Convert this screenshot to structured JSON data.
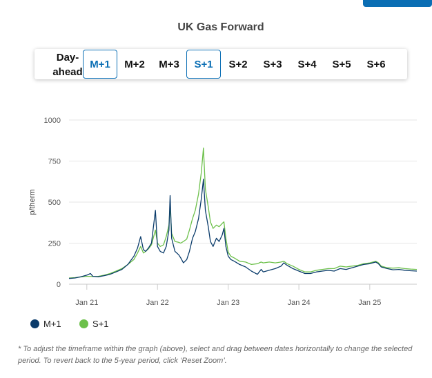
{
  "title": "UK Gas Forward",
  "tabs": [
    {
      "label": "Day-ahead",
      "active": false
    },
    {
      "label": "M+1",
      "active": true
    },
    {
      "label": "M+2",
      "active": false
    },
    {
      "label": "M+3",
      "active": false
    },
    {
      "label": "S+1",
      "active": true
    },
    {
      "label": "S+2",
      "active": false
    },
    {
      "label": "S+3",
      "active": false
    },
    {
      "label": "S+4",
      "active": false
    },
    {
      "label": "S+5",
      "active": false
    },
    {
      "label": "S+6",
      "active": false
    }
  ],
  "footnote": "* To adjust the timeframe within the graph (above), select and drag between dates horizontally to change the selected period. To revert back to the 5-year period, click ‘Reset Zoom’.",
  "chart_data": {
    "type": "line",
    "ylabel": "p/therm",
    "ylim": [
      0,
      1000
    ],
    "yticks": [
      0,
      250,
      500,
      750,
      1000
    ],
    "xlim": [
      "2020-10-01",
      "2025-09-01"
    ],
    "xticks": [
      {
        "date": "2021-01-01",
        "label": "Jan 21"
      },
      {
        "date": "2022-01-01",
        "label": "Jan 22"
      },
      {
        "date": "2023-01-01",
        "label": "Jan 23"
      },
      {
        "date": "2024-01-01",
        "label": "Jan 24"
      },
      {
        "date": "2025-01-01",
        "label": "Jan 25"
      }
    ],
    "grid": "horizontal",
    "legend_position": "bottom-left",
    "series": [
      {
        "name": "M+1",
        "color": "#0b3c6b",
        "points": [
          [
            "2020-10-01",
            35
          ],
          [
            "2020-11-01",
            38
          ],
          [
            "2020-12-01",
            45
          ],
          [
            "2021-01-01",
            55
          ],
          [
            "2021-01-20",
            65
          ],
          [
            "2021-02-01",
            48
          ],
          [
            "2021-03-01",
            45
          ],
          [
            "2021-04-01",
            52
          ],
          [
            "2021-05-01",
            60
          ],
          [
            "2021-06-01",
            75
          ],
          [
            "2021-07-01",
            90
          ],
          [
            "2021-08-01",
            120
          ],
          [
            "2021-09-01",
            170
          ],
          [
            "2021-09-20",
            220
          ],
          [
            "2021-10-06",
            290
          ],
          [
            "2021-10-20",
            210
          ],
          [
            "2021-11-01",
            200
          ],
          [
            "2021-11-15",
            220
          ],
          [
            "2021-12-01",
            250
          ],
          [
            "2021-12-21",
            450
          ],
          [
            "2022-01-01",
            230
          ],
          [
            "2022-01-15",
            200
          ],
          [
            "2022-02-01",
            190
          ],
          [
            "2022-02-15",
            230
          ],
          [
            "2022-03-01",
            330
          ],
          [
            "2022-03-07",
            540
          ],
          [
            "2022-03-15",
            280
          ],
          [
            "2022-04-01",
            200
          ],
          [
            "2022-04-20",
            180
          ],
          [
            "2022-05-01",
            160
          ],
          [
            "2022-05-15",
            130
          ],
          [
            "2022-06-01",
            150
          ],
          [
            "2022-06-15",
            200
          ],
          [
            "2022-07-01",
            280
          ],
          [
            "2022-07-15",
            320
          ],
          [
            "2022-08-01",
            400
          ],
          [
            "2022-08-15",
            520
          ],
          [
            "2022-08-26",
            640
          ],
          [
            "2022-09-05",
            450
          ],
          [
            "2022-09-20",
            350
          ],
          [
            "2022-10-01",
            260
          ],
          [
            "2022-10-15",
            230
          ],
          [
            "2022-11-01",
            280
          ],
          [
            "2022-11-15",
            260
          ],
          [
            "2022-12-01",
            300
          ],
          [
            "2022-12-10",
            340
          ],
          [
            "2022-12-20",
            230
          ],
          [
            "2023-01-01",
            170
          ],
          [
            "2023-01-15",
            150
          ],
          [
            "2023-02-01",
            140
          ],
          [
            "2023-03-01",
            120
          ],
          [
            "2023-04-01",
            105
          ],
          [
            "2023-05-01",
            80
          ],
          [
            "2023-06-01",
            60
          ],
          [
            "2023-06-20",
            90
          ],
          [
            "2023-07-01",
            75
          ],
          [
            "2023-08-01",
            85
          ],
          [
            "2023-09-01",
            95
          ],
          [
            "2023-10-01",
            110
          ],
          [
            "2023-10-15",
            130
          ],
          [
            "2023-11-01",
            115
          ],
          [
            "2023-12-01",
            95
          ],
          [
            "2024-01-01",
            80
          ],
          [
            "2024-02-01",
            65
          ],
          [
            "2024-03-01",
            65
          ],
          [
            "2024-04-01",
            75
          ],
          [
            "2024-05-01",
            80
          ],
          [
            "2024-06-01",
            85
          ],
          [
            "2024-07-01",
            80
          ],
          [
            "2024-08-01",
            95
          ],
          [
            "2024-09-01",
            90
          ],
          [
            "2024-10-01",
            100
          ],
          [
            "2024-11-01",
            110
          ],
          [
            "2024-12-01",
            120
          ],
          [
            "2025-01-01",
            125
          ],
          [
            "2025-02-01",
            135
          ],
          [
            "2025-02-15",
            125
          ],
          [
            "2025-03-01",
            105
          ],
          [
            "2025-04-01",
            95
          ],
          [
            "2025-05-01",
            88
          ],
          [
            "2025-06-01",
            90
          ],
          [
            "2025-07-01",
            85
          ],
          [
            "2025-08-01",
            82
          ],
          [
            "2025-09-01",
            80
          ]
        ]
      },
      {
        "name": "S+1",
        "color": "#6cc04a",
        "points": [
          [
            "2020-10-01",
            38
          ],
          [
            "2020-11-01",
            40
          ],
          [
            "2020-12-01",
            44
          ],
          [
            "2021-01-01",
            48
          ],
          [
            "2021-02-01",
            47
          ],
          [
            "2021-03-01",
            48
          ],
          [
            "2021-04-01",
            55
          ],
          [
            "2021-05-01",
            65
          ],
          [
            "2021-06-01",
            80
          ],
          [
            "2021-07-01",
            95
          ],
          [
            "2021-08-01",
            120
          ],
          [
            "2021-09-01",
            150
          ],
          [
            "2021-09-20",
            190
          ],
          [
            "2021-10-06",
            230
          ],
          [
            "2021-10-20",
            190
          ],
          [
            "2021-11-01",
            200
          ],
          [
            "2021-11-15",
            215
          ],
          [
            "2021-12-01",
            240
          ],
          [
            "2021-12-21",
            330
          ],
          [
            "2022-01-01",
            250
          ],
          [
            "2022-01-15",
            230
          ],
          [
            "2022-02-01",
            240
          ],
          [
            "2022-02-15",
            290
          ],
          [
            "2022-03-01",
            360
          ],
          [
            "2022-03-07",
            480
          ],
          [
            "2022-03-15",
            310
          ],
          [
            "2022-04-01",
            260
          ],
          [
            "2022-04-20",
            255
          ],
          [
            "2022-05-01",
            250
          ],
          [
            "2022-05-15",
            260
          ],
          [
            "2022-06-01",
            275
          ],
          [
            "2022-06-15",
            330
          ],
          [
            "2022-07-01",
            400
          ],
          [
            "2022-07-15",
            450
          ],
          [
            "2022-08-01",
            550
          ],
          [
            "2022-08-15",
            680
          ],
          [
            "2022-08-26",
            830
          ],
          [
            "2022-09-05",
            580
          ],
          [
            "2022-09-20",
            470
          ],
          [
            "2022-10-01",
            380
          ],
          [
            "2022-10-15",
            340
          ],
          [
            "2022-11-01",
            360
          ],
          [
            "2022-11-15",
            350
          ],
          [
            "2022-12-01",
            370
          ],
          [
            "2022-12-10",
            380
          ],
          [
            "2022-12-20",
            280
          ],
          [
            "2023-01-01",
            195
          ],
          [
            "2023-01-15",
            170
          ],
          [
            "2023-02-01",
            160
          ],
          [
            "2023-03-01",
            140
          ],
          [
            "2023-04-01",
            135
          ],
          [
            "2023-05-01",
            120
          ],
          [
            "2023-06-01",
            125
          ],
          [
            "2023-06-20",
            135
          ],
          [
            "2023-07-01",
            130
          ],
          [
            "2023-08-01",
            135
          ],
          [
            "2023-09-01",
            130
          ],
          [
            "2023-10-01",
            135
          ],
          [
            "2023-10-15",
            140
          ],
          [
            "2023-11-01",
            125
          ],
          [
            "2023-12-01",
            110
          ],
          [
            "2024-01-01",
            90
          ],
          [
            "2024-02-01",
            75
          ],
          [
            "2024-03-01",
            75
          ],
          [
            "2024-04-01",
            85
          ],
          [
            "2024-05-01",
            90
          ],
          [
            "2024-06-01",
            95
          ],
          [
            "2024-07-01",
            95
          ],
          [
            "2024-08-01",
            110
          ],
          [
            "2024-09-01",
            105
          ],
          [
            "2024-10-01",
            110
          ],
          [
            "2024-11-01",
            115
          ],
          [
            "2024-12-01",
            125
          ],
          [
            "2025-01-01",
            130
          ],
          [
            "2025-02-01",
            140
          ],
          [
            "2025-02-15",
            130
          ],
          [
            "2025-03-01",
            110
          ],
          [
            "2025-04-01",
            100
          ],
          [
            "2025-05-01",
            98
          ],
          [
            "2025-06-01",
            100
          ],
          [
            "2025-07-01",
            95
          ],
          [
            "2025-08-01",
            92
          ],
          [
            "2025-09-01",
            90
          ]
        ]
      }
    ]
  }
}
